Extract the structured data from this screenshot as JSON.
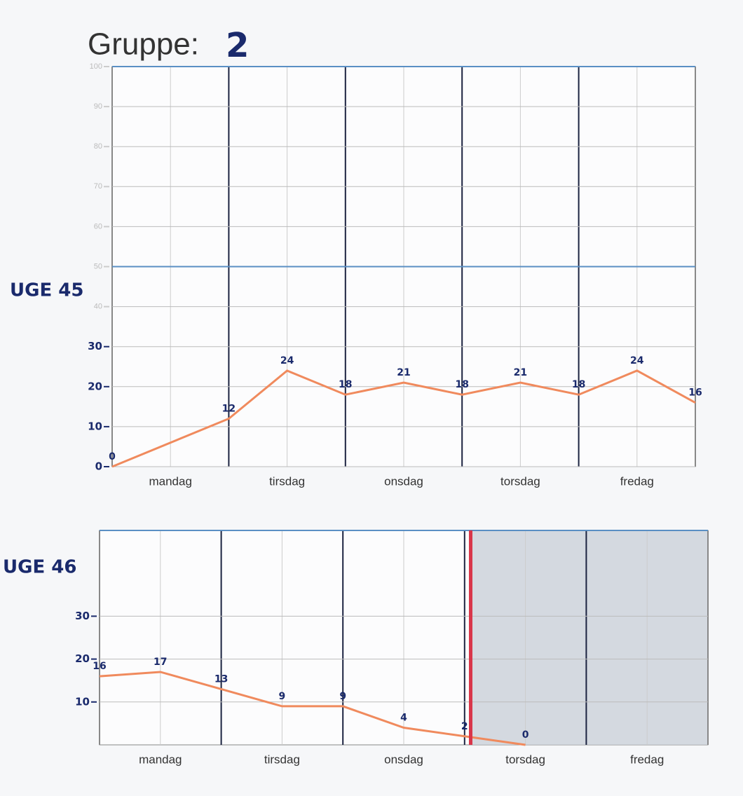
{
  "title": "Gruppe:",
  "group": "2",
  "chart_data": [
    {
      "type": "line",
      "title": "UGE 45",
      "categories": [
        "mandag",
        "tirsdag",
        "onsdag",
        "torsdag",
        "fredag"
      ],
      "x": [
        0,
        1,
        1.5,
        2,
        2.5,
        3,
        3.5,
        4,
        4.5,
        5
      ],
      "values": [
        0,
        12,
        24,
        18,
        21,
        18,
        21,
        18,
        24,
        16
      ],
      "color": "#f08a5d",
      "xlim": [
        0,
        5
      ],
      "ylim": [
        0,
        100
      ],
      "yticks": [
        0,
        10,
        20,
        30,
        40,
        50,
        60,
        70,
        80,
        90,
        100
      ],
      "grid": true
    },
    {
      "type": "line",
      "title": "UGE 46",
      "categories": [
        "mandag",
        "tirsdag",
        "onsdag",
        "torsdag",
        "fredag"
      ],
      "x": [
        0,
        0.5,
        1,
        1.5,
        2,
        2.5,
        3,
        3.5
      ],
      "values": [
        16,
        17,
        13,
        9,
        9,
        4,
        2,
        0
      ],
      "color": "#f08a5d",
      "xlim": [
        0,
        5
      ],
      "ylim": [
        0,
        50
      ],
      "yticks": [
        10,
        20,
        30
      ],
      "today_x": 3.05,
      "grid": true
    }
  ]
}
